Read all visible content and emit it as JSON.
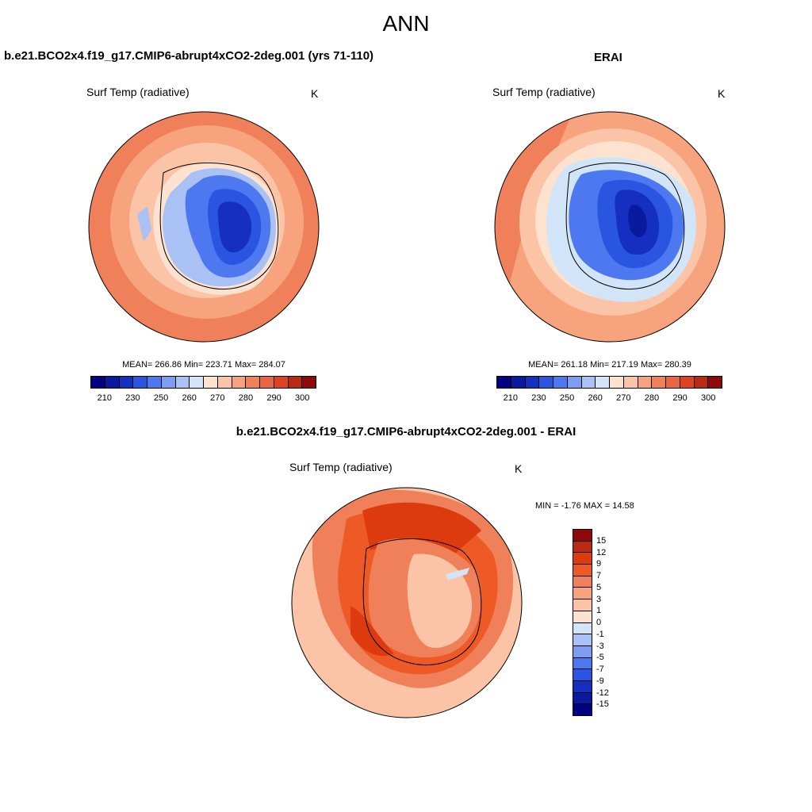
{
  "page_title": "ANN",
  "panels": {
    "model": {
      "title": "b.e21.BCO2x4.f19_g17.CMIP6-abrupt4xCO2-2deg.001 (yrs 71-110)",
      "variable": "Surf Temp (radiative)",
      "units": "K",
      "stats": "MEAN= 266.86  Min= 223.71  Max= 284.07"
    },
    "obs": {
      "title": "ERAI",
      "variable": "Surf Temp (radiative)",
      "units": "K",
      "stats": "MEAN= 261.18  Min= 217.19  Max= 280.39"
    },
    "diff": {
      "title": "b.e21.BCO2x4.f19_g17.CMIP6-abrupt4xCO2-2deg.001 - ERAI",
      "variable": "Surf Temp (radiative)",
      "units": "K",
      "stats": "MIN =  -1.76 MAX =  14.58"
    }
  },
  "colorbars": {
    "absolute": {
      "colors": [
        "#000080",
        "#0a1a9e",
        "#1530c0",
        "#2a55e0",
        "#4d78f0",
        "#7b9ef2",
        "#a9c1f5",
        "#d2e4f7",
        "#fde2cf",
        "#fbc4a6",
        "#f7a47e",
        "#f0805a",
        "#e9643f",
        "#dd4222",
        "#b82b10",
        "#8e0a0a"
      ],
      "ticks": [
        "210",
        "230",
        "250",
        "260",
        "270",
        "280",
        "290",
        "300"
      ]
    },
    "difference": {
      "colors": [
        "#8e0a0a",
        "#b82b10",
        "#dd3a10",
        "#ee5a25",
        "#f0805a",
        "#f7a47e",
        "#fbc4a6",
        "#fde2cf",
        "#d2e4f7",
        "#a9c1f5",
        "#7b9ef2",
        "#4d78f0",
        "#2a55e0",
        "#1530c0",
        "#0a1a9e",
        "#000080"
      ],
      "ticks": [
        "15",
        "12",
        "9",
        "7",
        "5",
        "3",
        "1",
        "0",
        "-1",
        "-3",
        "-5",
        "-7",
        "-9",
        "-12",
        "-15"
      ]
    }
  }
}
